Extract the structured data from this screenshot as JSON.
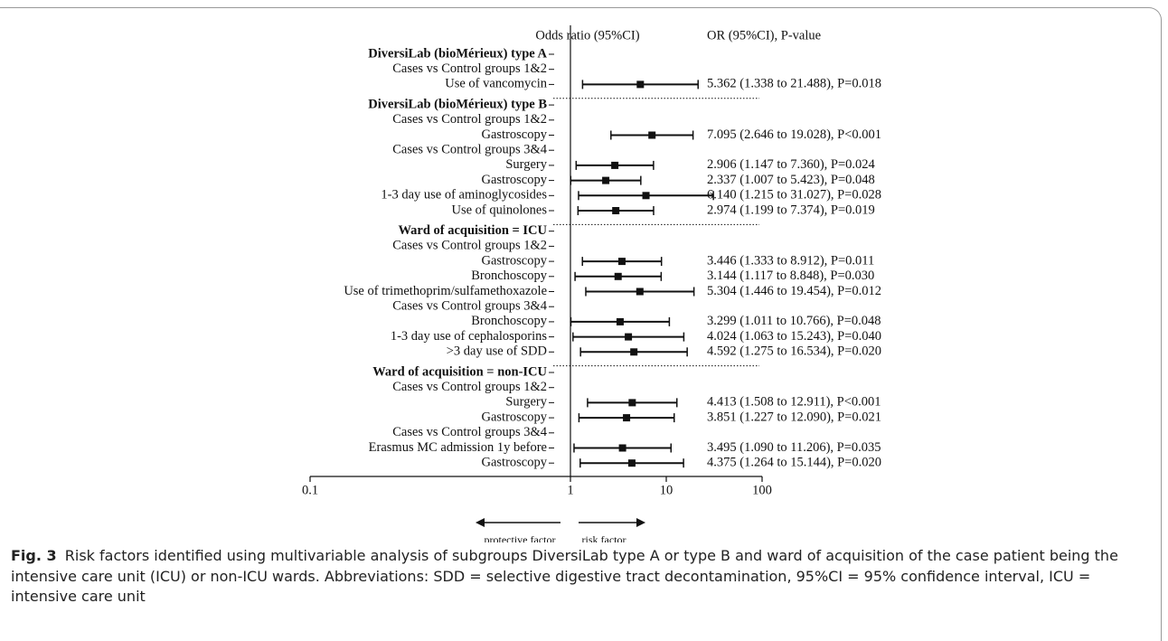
{
  "chart_data": {
    "type": "forest",
    "header_left": "Odds ratio  (95%CI)",
    "header_right": "OR (95%CI), P-value",
    "xlim": [
      0.1,
      100
    ],
    "xticks": [
      0.1,
      1,
      10,
      100
    ],
    "log_scale": true,
    "reference_line": 1,
    "color": "#111111",
    "annotations": [
      "protective factor",
      "risk factor"
    ],
    "groups": [
      {
        "title": "DiversiLab (bioMérieux) type A",
        "rows": [
          {
            "label": "Cases vs Control groups 1&2"
          },
          {
            "label": "Use of vancomycin",
            "or": 5.362,
            "ci": [
              1.338,
              21.488
            ],
            "text": "5.362 (1.338 to 21.488), P=0.018"
          }
        ]
      },
      {
        "title": "DiversiLab (bioMérieux) type B",
        "rows": [
          {
            "label": "Cases vs Control groups 1&2"
          },
          {
            "label": "Gastroscopy",
            "or": 7.095,
            "ci": [
              2.646,
              19.028
            ],
            "text": "7.095 (2.646 to 19.028), P<0.001"
          },
          {
            "label": "Cases vs Control groups 3&4"
          },
          {
            "label": "Surgery",
            "or": 2.906,
            "ci": [
              1.147,
              7.36
            ],
            "text": "2.906 (1.147 to 7.360), P=0.024"
          },
          {
            "label": "Gastroscopy",
            "or": 2.337,
            "ci": [
              1.007,
              5.423
            ],
            "text": "2.337 (1.007 to 5.423), P=0.048"
          },
          {
            "label": "1-3 day use of aminoglycosides",
            "or": 6.14,
            "ci": [
              1.215,
              31.027
            ],
            "text": "6.140 (1.215 to 31.027), P=0.028"
          },
          {
            "label": "Use of quinolones",
            "or": 2.974,
            "ci": [
              1.199,
              7.374
            ],
            "text": "2.974 (1.199 to 7.374), P=0.019"
          }
        ]
      },
      {
        "title": "Ward of acquisition = ICU",
        "rows": [
          {
            "label": "Cases vs Control groups 1&2"
          },
          {
            "label": "Gastroscopy",
            "or": 3.446,
            "ci": [
              1.333,
              8.912
            ],
            "text": "3.446 (1.333 to 8.912), P=0.011"
          },
          {
            "label": "Bronchoscopy",
            "or": 3.144,
            "ci": [
              1.117,
              8.848
            ],
            "text": "3.144 (1.117 to 8.848), P=0.030"
          },
          {
            "label": "Use of trimethoprim/sulfamethoxazole",
            "or": 5.304,
            "ci": [
              1.446,
              19.454
            ],
            "text": "5.304 (1.446 to 19.454), P=0.012"
          },
          {
            "label": "Cases vs Control groups 3&4"
          },
          {
            "label": "Bronchoscopy",
            "or": 3.299,
            "ci": [
              1.011,
              10.766
            ],
            "text": "3.299 (1.011 to 10.766), P=0.048"
          },
          {
            "label": "1-3 day use of cephalosporins",
            "or": 4.024,
            "ci": [
              1.063,
              15.243
            ],
            "text": "4.024 (1.063 to 15.243), P=0.040"
          },
          {
            "label": ">3 day use of SDD",
            "or": 4.592,
            "ci": [
              1.275,
              16.534
            ],
            "text": "4.592 (1.275 to 16.534), P=0.020"
          }
        ]
      },
      {
        "title": "Ward of acquisition = non-ICU",
        "rows": [
          {
            "label": "Cases vs Control groups 1&2"
          },
          {
            "label": "Surgery",
            "or": 4.413,
            "ci": [
              1.508,
              12.911
            ],
            "text": "4.413 (1.508 to 12.911), P<0.001"
          },
          {
            "label": "Gastroscopy",
            "or": 3.851,
            "ci": [
              1.227,
              12.09
            ],
            "text": "3.851 (1.227 to 12.090), P=0.021"
          },
          {
            "label": "Cases vs Control groups 3&4"
          },
          {
            "label": "Erasmus MC admission 1y before",
            "or": 3.495,
            "ci": [
              1.09,
              11.206
            ],
            "text": "3.495 (1.090 to 11.206), P=0.035"
          },
          {
            "label": "Gastroscopy",
            "or": 4.375,
            "ci": [
              1.264,
              15.144
            ],
            "text": "4.375 (1.264 to 15.144), P=0.020"
          }
        ]
      }
    ]
  },
  "caption": {
    "label": "Fig. 3",
    "text": "Risk factors identified using multivariable analysis of subgroups DiversiLab type A or type B and ward of acquisition of the case patient being the intensive care unit (ICU) or non-ICU wards. Abbreviations: SDD = selective digestive tract decontamination, 95%CI = 95% confidence interval, ICU = intensive care unit"
  }
}
